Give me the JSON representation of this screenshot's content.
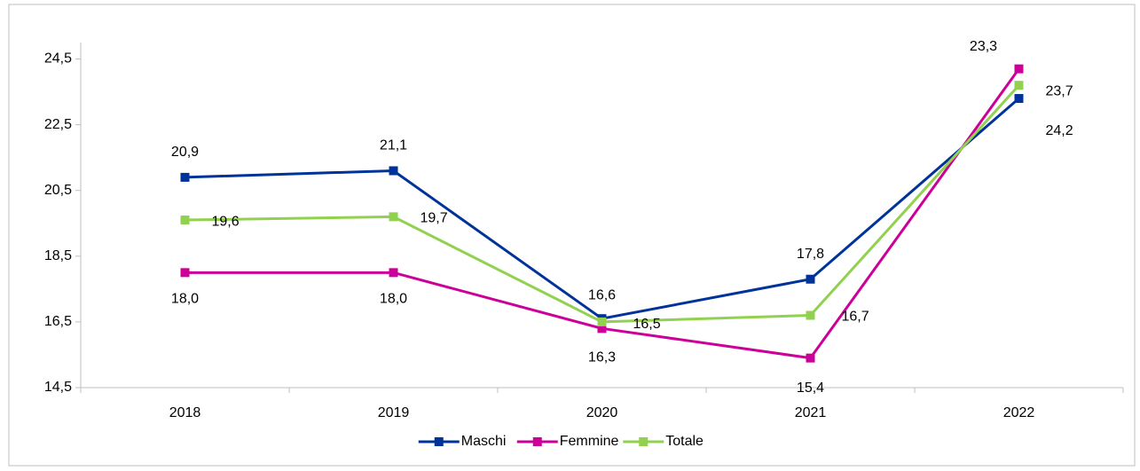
{
  "chart_data": {
    "type": "line",
    "categories": [
      "2018",
      "2019",
      "2020",
      "2021",
      "2022"
    ],
    "series": [
      {
        "name": "Maschi",
        "color": "#003399",
        "values": [
          20.9,
          21.1,
          16.6,
          17.8,
          23.3
        ],
        "value_labels": [
          "20,9",
          "21,1",
          "16,6",
          "17,8",
          "23,3"
        ]
      },
      {
        "name": "Femmine",
        "color": "#cc0099",
        "values": [
          18.0,
          18.0,
          16.3,
          15.4,
          24.2
        ],
        "value_labels": [
          "18,0",
          "18,0",
          "16,3",
          "15,4",
          "24,2"
        ]
      },
      {
        "name": "Totale",
        "color": "#92d050",
        "values": [
          19.6,
          19.7,
          16.5,
          16.7,
          23.7
        ],
        "value_labels": [
          "19,6",
          "19,7",
          "16,5",
          "16,7",
          "23,7"
        ]
      }
    ],
    "ylim": [
      14.5,
      25
    ],
    "yticks": [
      {
        "value": 14.5,
        "label": "14,5"
      },
      {
        "value": 16.5,
        "label": "16,5"
      },
      {
        "value": 18.5,
        "label": "18,5"
      },
      {
        "value": 20.5,
        "label": "20,5"
      },
      {
        "value": 22.5,
        "label": "22,5"
      },
      {
        "value": 24.5,
        "label": "24,5"
      }
    ],
    "legend": "bottom"
  }
}
